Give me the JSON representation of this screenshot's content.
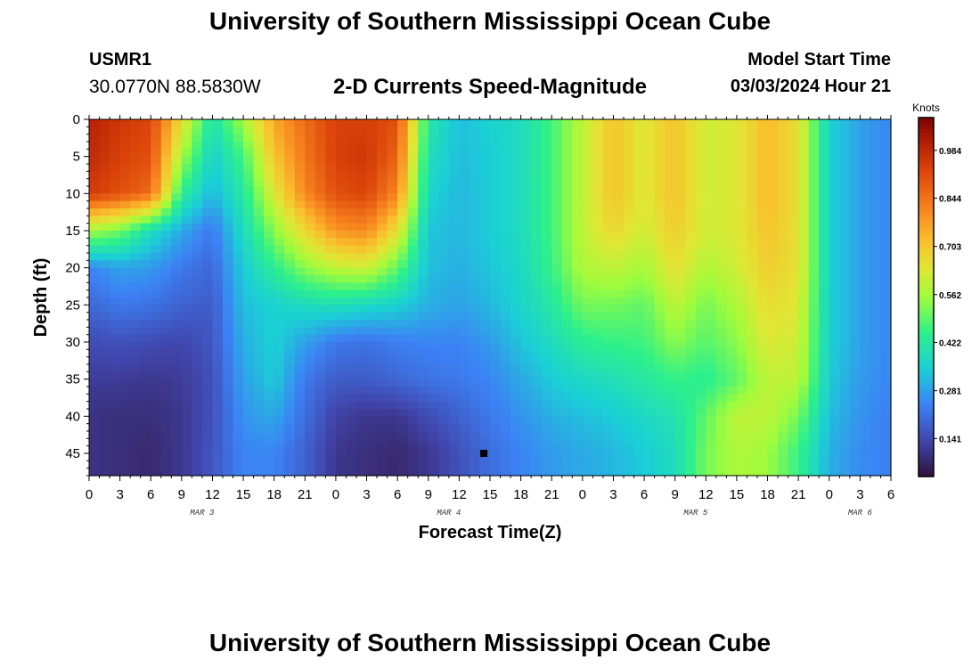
{
  "header": {
    "title": "University of Southern Mississippi Ocean Cube",
    "station_id": "USMR1",
    "station_coords": "30.0770N  88.5830W",
    "chart_subtitle": "2-D Currents Speed-Magnitude",
    "start_label": "Model Start Time",
    "start_value": "03/03/2024 Hour 21"
  },
  "footer": {
    "title": "University of Southern Mississippi Ocean Cube"
  },
  "chart_data": {
    "type": "heatmap",
    "title": "2-D Currents Speed-Magnitude",
    "xlabel": "Forecast Time(Z)",
    "ylabel": "Depth (ft)",
    "x_range_hours": [
      0,
      78
    ],
    "y_range_ft": [
      0,
      48
    ],
    "y_inverted": true,
    "x_ticks": [
      "0",
      "3",
      "6",
      "9",
      "12",
      "15",
      "18",
      "21",
      "0",
      "3",
      "6",
      "9",
      "12",
      "15",
      "18",
      "21",
      "0",
      "3",
      "6",
      "9",
      "12",
      "15",
      "18",
      "21",
      "0",
      "3",
      "6"
    ],
    "y_ticks": [
      "0",
      "5",
      "10",
      "15",
      "20",
      "25",
      "30",
      "35",
      "40",
      "45"
    ],
    "day_labels": [
      {
        "label": "MAR 3",
        "hour": 11
      },
      {
        "label": "MAR 4",
        "hour": 35
      },
      {
        "label": "MAR 5",
        "hour": 59
      },
      {
        "label": "MAR 6",
        "hour": 75
      }
    ],
    "colorbar": {
      "unit": "Knots",
      "range": [
        0.03,
        1.08
      ],
      "ticks": [
        "0.984",
        "0.844",
        "0.703",
        "0.562",
        "0.422",
        "0.281",
        "0.141"
      ],
      "colormap": "turbo"
    },
    "marker": {
      "hour": 38.4,
      "depth_ft": 45
    },
    "grid_hours": [
      0,
      3,
      6,
      9,
      12,
      15,
      18,
      21,
      24,
      27,
      30,
      33,
      36,
      39,
      42,
      45,
      48,
      51,
      54,
      57,
      60,
      63,
      66,
      69,
      72,
      75,
      78
    ],
    "grid_depths_ft": [
      0,
      5,
      10,
      15,
      20,
      25,
      30,
      35,
      40,
      45
    ],
    "values": [
      [
        1.0,
        0.95,
        0.92,
        0.65,
        0.38,
        0.55,
        0.75,
        0.85,
        0.93,
        0.93,
        0.9,
        0.4,
        0.3,
        0.33,
        0.36,
        0.45,
        0.58,
        0.7,
        0.62,
        0.7,
        0.6,
        0.62,
        0.72,
        0.64,
        0.33,
        0.26,
        0.22
      ],
      [
        0.98,
        0.93,
        0.9,
        0.55,
        0.33,
        0.45,
        0.7,
        0.83,
        0.93,
        0.95,
        0.86,
        0.37,
        0.3,
        0.32,
        0.36,
        0.45,
        0.58,
        0.7,
        0.62,
        0.7,
        0.6,
        0.62,
        0.72,
        0.64,
        0.33,
        0.26,
        0.22
      ],
      [
        0.94,
        0.9,
        0.85,
        0.42,
        0.29,
        0.4,
        0.62,
        0.8,
        0.9,
        0.92,
        0.8,
        0.34,
        0.29,
        0.32,
        0.36,
        0.45,
        0.58,
        0.7,
        0.62,
        0.7,
        0.6,
        0.62,
        0.72,
        0.64,
        0.33,
        0.26,
        0.22
      ],
      [
        0.55,
        0.5,
        0.36,
        0.27,
        0.2,
        0.36,
        0.52,
        0.66,
        0.78,
        0.8,
        0.64,
        0.31,
        0.29,
        0.32,
        0.36,
        0.45,
        0.58,
        0.66,
        0.6,
        0.68,
        0.6,
        0.62,
        0.7,
        0.64,
        0.33,
        0.26,
        0.22
      ],
      [
        0.22,
        0.26,
        0.25,
        0.2,
        0.17,
        0.32,
        0.42,
        0.52,
        0.58,
        0.6,
        0.48,
        0.3,
        0.28,
        0.31,
        0.35,
        0.44,
        0.56,
        0.58,
        0.55,
        0.64,
        0.56,
        0.6,
        0.68,
        0.64,
        0.33,
        0.26,
        0.22
      ],
      [
        0.17,
        0.2,
        0.19,
        0.16,
        0.15,
        0.3,
        0.33,
        0.36,
        0.37,
        0.35,
        0.33,
        0.28,
        0.26,
        0.29,
        0.34,
        0.4,
        0.5,
        0.5,
        0.48,
        0.58,
        0.5,
        0.56,
        0.65,
        0.62,
        0.33,
        0.26,
        0.22
      ],
      [
        0.12,
        0.13,
        0.12,
        0.11,
        0.14,
        0.28,
        0.33,
        0.26,
        0.2,
        0.19,
        0.21,
        0.22,
        0.22,
        0.25,
        0.31,
        0.36,
        0.42,
        0.44,
        0.45,
        0.52,
        0.47,
        0.52,
        0.62,
        0.6,
        0.33,
        0.26,
        0.22
      ],
      [
        0.09,
        0.09,
        0.08,
        0.09,
        0.13,
        0.26,
        0.32,
        0.2,
        0.15,
        0.15,
        0.17,
        0.19,
        0.2,
        0.22,
        0.27,
        0.32,
        0.35,
        0.37,
        0.4,
        0.44,
        0.42,
        0.48,
        0.58,
        0.58,
        0.32,
        0.25,
        0.22
      ],
      [
        0.07,
        0.06,
        0.06,
        0.08,
        0.13,
        0.24,
        0.27,
        0.18,
        0.1,
        0.08,
        0.08,
        0.12,
        0.16,
        0.2,
        0.24,
        0.28,
        0.3,
        0.32,
        0.35,
        0.38,
        0.48,
        0.58,
        0.58,
        0.5,
        0.3,
        0.24,
        0.21
      ],
      [
        0.07,
        0.06,
        0.05,
        0.08,
        0.14,
        0.22,
        0.22,
        0.16,
        0.08,
        0.06,
        0.05,
        0.08,
        0.13,
        0.18,
        0.22,
        0.25,
        0.27,
        0.29,
        0.32,
        0.36,
        0.5,
        0.56,
        0.54,
        0.44,
        0.28,
        0.23,
        0.21
      ]
    ]
  }
}
